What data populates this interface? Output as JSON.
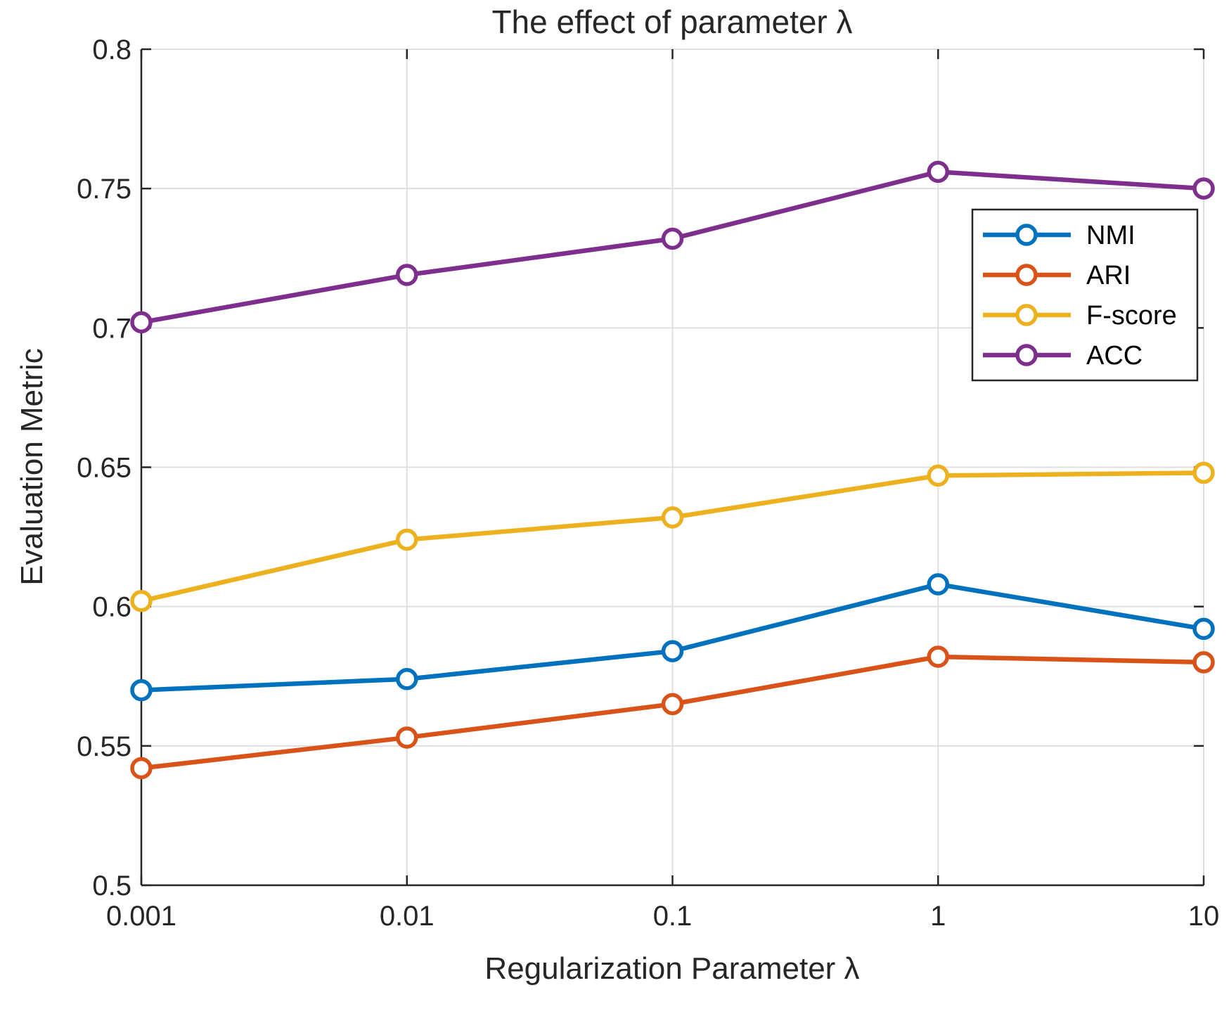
{
  "chart_data": {
    "type": "line",
    "title": "The effect of parameter λ",
    "xlabel": "Regularization Parameter λ",
    "ylabel": "Evaluation Metric",
    "categories": [
      "0.001",
      "0.01",
      "0.1",
      "1",
      "10"
    ],
    "x": [
      0.001,
      0.01,
      0.1,
      1,
      10
    ],
    "xscale": "log",
    "ylim": [
      0.5,
      0.8
    ],
    "yticks": [
      "0.5",
      "0.55",
      "0.6",
      "0.65",
      "0.7",
      "0.75",
      "0.8"
    ],
    "grid": true,
    "legend_position": "top-right",
    "series": [
      {
        "name": "NMI",
        "color": "#0072BD",
        "values": [
          0.57,
          0.574,
          0.584,
          0.608,
          0.592
        ]
      },
      {
        "name": "ARI",
        "color": "#D95319",
        "values": [
          0.542,
          0.553,
          0.565,
          0.582,
          0.58
        ]
      },
      {
        "name": "F-score",
        "color": "#EDB120",
        "values": [
          0.602,
          0.624,
          0.632,
          0.647,
          0.648
        ]
      },
      {
        "name": "ACC",
        "color": "#7E2F8E",
        "values": [
          0.702,
          0.719,
          0.732,
          0.756,
          0.75
        ]
      }
    ]
  }
}
